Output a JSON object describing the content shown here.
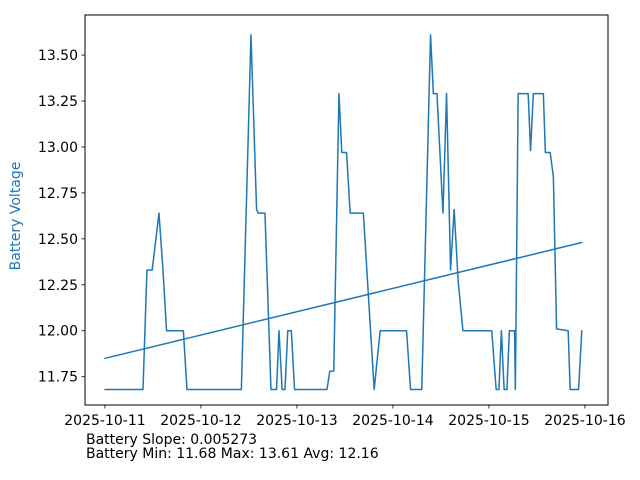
{
  "figure": {
    "background": "#ffffff",
    "plot_border_color": "#000000",
    "tick_color": "#000000"
  },
  "chart_data": {
    "type": "line",
    "title": "",
    "xlabel": "",
    "ylabel": "Battery Voltage",
    "ylabel_color": "#1f77b4",
    "line_color": "#1f77b4",
    "trend_color": "#1f77b4",
    "grid": false,
    "legend": "none",
    "x_unit": "hours since 2025-10-11 00:00",
    "x_tick_days": [
      0,
      1,
      2,
      3,
      4,
      5
    ],
    "x_tick_labels": [
      "2025-10-11",
      "2025-10-12",
      "2025-10-13",
      "2025-10-14",
      "2025-10-15",
      "2025-10-16"
    ],
    "y_ticks": [
      11.75,
      12.0,
      12.25,
      12.5,
      12.75,
      13.0,
      13.25,
      13.5
    ],
    "xlim_days": [
      -0.208,
      5.24
    ],
    "ylim": [
      11.596,
      13.718
    ],
    "series": [
      {
        "name": "battery_voltage",
        "points": [
          [
            0,
            11.68
          ],
          [
            9.5,
            11.68
          ],
          [
            10.5,
            12.33
          ],
          [
            11.8,
            12.33
          ],
          [
            13.5,
            12.64
          ],
          [
            14.5,
            12.33
          ],
          [
            15.4,
            12.0
          ],
          [
            19.6,
            12.0
          ],
          [
            20.5,
            11.68
          ],
          [
            34.1,
            11.68
          ],
          [
            36.5,
            13.61
          ],
          [
            37.9,
            12.66
          ],
          [
            38.3,
            12.64
          ],
          [
            40.0,
            12.64
          ],
          [
            41.5,
            11.68
          ],
          [
            42.9,
            11.68
          ],
          [
            43.5,
            12.0
          ],
          [
            44.3,
            11.68
          ],
          [
            45.0,
            11.68
          ],
          [
            45.7,
            12.0
          ],
          [
            46.6,
            12.0
          ],
          [
            47.4,
            11.68
          ],
          [
            55.5,
            11.68
          ],
          [
            56.2,
            11.78
          ],
          [
            57.2,
            11.78
          ],
          [
            58.5,
            13.29
          ],
          [
            59.2,
            12.97
          ],
          [
            60.4,
            12.97
          ],
          [
            61.3,
            12.64
          ],
          [
            64.6,
            12.64
          ],
          [
            67.3,
            11.68
          ],
          [
            68.8,
            12.0
          ],
          [
            75.4,
            12.0
          ],
          [
            76.4,
            11.68
          ],
          [
            79.2,
            11.68
          ],
          [
            81.4,
            13.61
          ],
          [
            82.1,
            13.29
          ],
          [
            83.0,
            13.29
          ],
          [
            84.5,
            12.64
          ],
          [
            85.4,
            13.29
          ],
          [
            86.4,
            12.33
          ],
          [
            87.3,
            12.66
          ],
          [
            88.3,
            12.27
          ],
          [
            89.5,
            12.0
          ],
          [
            96.7,
            12.0
          ],
          [
            97.8,
            11.68
          ],
          [
            98.5,
            11.68
          ],
          [
            99.1,
            12.0
          ],
          [
            99.8,
            11.68
          ],
          [
            100.5,
            11.68
          ],
          [
            101.1,
            12.0
          ],
          [
            102.4,
            12.0
          ],
          [
            102.6,
            11.68
          ],
          [
            103.3,
            13.29
          ],
          [
            105.8,
            13.29
          ],
          [
            106.4,
            12.98
          ],
          [
            107.1,
            13.29
          ],
          [
            109.6,
            13.29
          ],
          [
            110.1,
            12.97
          ],
          [
            111.3,
            12.97
          ],
          [
            112.1,
            12.84
          ],
          [
            112.9,
            12.01
          ],
          [
            115.8,
            12.0
          ],
          [
            116.3,
            11.68
          ],
          [
            118.4,
            11.68
          ],
          [
            119.2,
            12.0
          ]
        ]
      },
      {
        "name": "trend",
        "points": [
          [
            0,
            11.85
          ],
          [
            119.2,
            12.48
          ]
        ]
      }
    ]
  },
  "stats": {
    "slope_line": "Battery Slope: 0.005273",
    "minmax_line": "Battery Min: 11.68 Max: 13.61 Avg: 12.16",
    "slope_value": "0.005273",
    "min_value": "11.68",
    "max_value": "13.61",
    "avg_value": "12.16"
  }
}
